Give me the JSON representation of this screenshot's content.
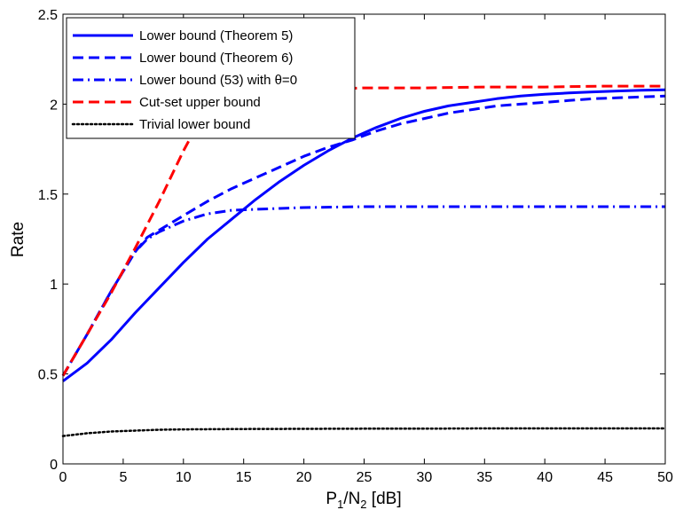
{
  "chart_data": {
    "type": "line",
    "title": "",
    "xlabel": "P1/N2 [dB]",
    "xlabel_parts": {
      "p": "P",
      "sub1": "1",
      "slash_n": "/N",
      "sub2": "2",
      "unit": " [dB]"
    },
    "ylabel": "Rate",
    "xlim": [
      0,
      50
    ],
    "ylim": [
      0,
      2.5
    ],
    "xticks": [
      "0",
      "5",
      "10",
      "15",
      "20",
      "25",
      "30",
      "35",
      "40",
      "45",
      "50"
    ],
    "yticks": [
      "0",
      "0.5",
      "1",
      "1.5",
      "2",
      "2.5"
    ],
    "grid": false,
    "legend_position": "top-left",
    "series": [
      {
        "name": "Lower bound (Theorem 5)",
        "color": "#0000ff",
        "style": "solid",
        "x": [
          0,
          2,
          4,
          6,
          8,
          10,
          12,
          14,
          16,
          18,
          20,
          22,
          24,
          26,
          28,
          30,
          32,
          34,
          36,
          38,
          40,
          42,
          44,
          46,
          48,
          50
        ],
        "y": [
          0.46,
          0.56,
          0.69,
          0.84,
          0.98,
          1.12,
          1.25,
          1.36,
          1.47,
          1.57,
          1.66,
          1.74,
          1.81,
          1.87,
          1.92,
          1.96,
          1.99,
          2.01,
          2.03,
          2.045,
          2.055,
          2.062,
          2.068,
          2.073,
          2.077,
          2.08
        ]
      },
      {
        "name": "Lower bound (Theorem 6)",
        "color": "#0000ff",
        "style": "dashed",
        "x": [
          0,
          2,
          4,
          6,
          7,
          8,
          10,
          12,
          14,
          16,
          18,
          20,
          22,
          24,
          26,
          28,
          30,
          32,
          34,
          36,
          38,
          40,
          42,
          44,
          46,
          48,
          50
        ],
        "y": [
          0.49,
          0.72,
          0.96,
          1.18,
          1.26,
          1.3,
          1.38,
          1.46,
          1.53,
          1.59,
          1.65,
          1.71,
          1.76,
          1.8,
          1.85,
          1.89,
          1.92,
          1.95,
          1.97,
          1.99,
          2.0,
          2.01,
          2.02,
          2.03,
          2.035,
          2.04,
          2.045
        ]
      },
      {
        "name": "Lower bound (53) with θ=0",
        "color": "#0000ff",
        "style": "dashdot",
        "x": [
          0,
          2,
          4,
          6,
          7,
          8,
          10,
          12,
          14,
          16,
          18,
          20,
          25,
          30,
          35,
          40,
          45,
          50
        ],
        "y": [
          0.49,
          0.72,
          0.96,
          1.18,
          1.25,
          1.29,
          1.35,
          1.39,
          1.41,
          1.415,
          1.42,
          1.425,
          1.43,
          1.43,
          1.43,
          1.43,
          1.43,
          1.43
        ]
      },
      {
        "name": "Cut-set upper bound",
        "color": "#ff0000",
        "style": "dashed",
        "x": [
          0,
          2,
          4,
          6,
          8,
          10,
          12,
          14,
          16,
          18,
          20,
          25,
          30,
          35,
          40,
          45,
          50
        ],
        "y": [
          0.49,
          0.72,
          0.95,
          1.2,
          1.46,
          1.74,
          1.99,
          2.04,
          2.06,
          2.07,
          2.08,
          2.09,
          2.09,
          2.095,
          2.095,
          2.1,
          2.1
        ]
      },
      {
        "name": "Trivial lower bound",
        "color": "#000000",
        "style": "dotted",
        "x": [
          0,
          2,
          4,
          6,
          8,
          10,
          15,
          20,
          25,
          30,
          35,
          40,
          45,
          50
        ],
        "y": [
          0.155,
          0.17,
          0.18,
          0.185,
          0.19,
          0.192,
          0.194,
          0.195,
          0.196,
          0.196,
          0.197,
          0.197,
          0.197,
          0.197
        ]
      }
    ]
  }
}
